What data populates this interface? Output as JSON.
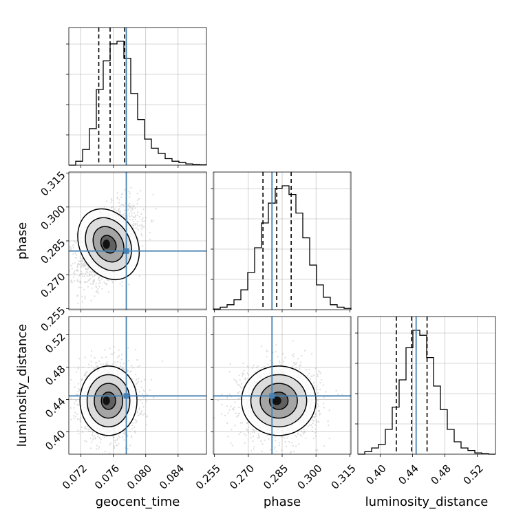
{
  "chart_data": {
    "type": "corner",
    "parameters": [
      "geocent_time",
      "phase",
      "luminosity_distance"
    ],
    "axis_labels": {
      "geocent_time": "geocent_time",
      "phase": "phase",
      "luminosity_distance": "luminosity_distance"
    },
    "ranges": {
      "geocent_time": [
        0.0705,
        0.0875
      ],
      "phase": [
        0.2545,
        0.3155
      ],
      "luminosity_distance": [
        0.3725,
        0.5425
      ]
    },
    "ticks": {
      "geocent_time": {
        "values": [
          0.072,
          0.076,
          0.08,
          0.084
        ],
        "labels": [
          "0.072",
          "0.076",
          "0.080",
          "0.084"
        ]
      },
      "phase": {
        "values": [
          0.255,
          0.27,
          0.285,
          0.3,
          0.315
        ],
        "labels": [
          "0.255",
          "0.270",
          "0.285",
          "0.300",
          "0.315"
        ]
      },
      "luminosity_distance": {
        "values": [
          0.4,
          0.44,
          0.48,
          0.52
        ],
        "labels": [
          "0.40",
          "0.44",
          "0.48",
          "0.52"
        ]
      }
    },
    "truths": {
      "geocent_time": 0.0776,
      "phase": 0.2805,
      "luminosity_distance": 0.4445
    },
    "quantiles": {
      "geocent_time": [
        0.0742,
        0.0756,
        0.0774
      ],
      "phase": [
        0.2765,
        0.2826,
        0.289
      ],
      "luminosity_distance": [
        0.42,
        0.439,
        0.458
      ]
    },
    "histograms": {
      "geocent_time": {
        "edges_range": [
          0.0705,
          0.0875
        ],
        "counts": [
          0,
          3,
          12,
          28,
          58,
          80,
          93,
          95,
          82,
          55,
          35,
          20,
          13,
          9,
          5,
          3,
          2,
          1,
          0.5,
          0.3
        ]
      },
      "phase": {
        "edges_range": [
          0.2545,
          0.3155
        ],
        "counts": [
          0.5,
          2,
          4,
          8,
          16,
          30,
          50,
          70,
          86,
          98,
          100,
          93,
          78,
          58,
          36,
          20,
          10,
          4,
          2,
          1
        ]
      },
      "luminosity_distance": {
        "edges_range": [
          0.3725,
          0.5425
        ],
        "counts": [
          0,
          2,
          5,
          8,
          20,
          38,
          60,
          86,
          100,
          96,
          78,
          55,
          36,
          20,
          10,
          5,
          3,
          1,
          0.5,
          0
        ]
      }
    },
    "posterior": {
      "mean": {
        "geocent_time": 0.0754,
        "phase": 0.2835,
        "luminosity_distance": 0.4385
      },
      "sd": {
        "geocent_time": 0.0016,
        "phase": 0.0075,
        "luminosity_distance": 0.0195
      },
      "contour_levels_sigma": [
        0.5,
        1.0,
        1.5,
        2.0
      ]
    },
    "grid": true
  }
}
